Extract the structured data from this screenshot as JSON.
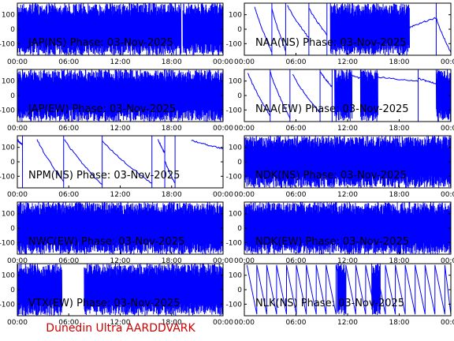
{
  "colors": {
    "trace": "#0000ff",
    "axis": "#000000",
    "footer": "#cc0000",
    "background": "#ffffff"
  },
  "footer_text": "Dunedin Ultra AARDDVARK",
  "chart_data": [
    {
      "type": "line",
      "title": "JAP(NS) Phase: 03-Nov-2025",
      "xlim": [
        0,
        24
      ],
      "ylim": [
        -180,
        180
      ],
      "xticks": [
        "00:00",
        "06:00",
        "12:00",
        "18:00",
        "00:00"
      ],
      "yticks": [
        100,
        0,
        -100
      ],
      "pattern": "dense",
      "gaps": [
        [
          19.1,
          19.3
        ]
      ],
      "ramps": []
    },
    {
      "type": "line",
      "title": "NAA(NS) Phase: 03-Nov-2025",
      "xlim": [
        0,
        24
      ],
      "ylim": [
        -180,
        180
      ],
      "xticks": [
        "00:00",
        "06:00",
        "12:00",
        "18:00",
        "00:00"
      ],
      "yticks": [
        100,
        0,
        -100
      ],
      "pattern": "ramps",
      "ramps": [
        [
          1.2,
          160,
          3.2,
          -160
        ],
        [
          3.2,
          150,
          4.8,
          -150
        ],
        [
          5.0,
          170,
          7.5,
          -60
        ],
        [
          7.5,
          150,
          9.6,
          -40
        ],
        [
          19.2,
          10,
          22.3,
          80
        ],
        [
          22.3,
          80,
          24.0,
          -160
        ]
      ],
      "dense": [
        [
          10.0,
          19.2
        ]
      ]
    },
    {
      "type": "line",
      "title": "JAP(EW) Phase: 03-Nov-2025",
      "xlim": [
        0,
        24
      ],
      "ylim": [
        -180,
        180
      ],
      "xticks": [
        "00:00",
        "06:00",
        "12:00",
        "18:00",
        "00:00"
      ],
      "yticks": [
        100,
        0,
        -100
      ],
      "pattern": "dense",
      "gaps": [],
      "ramps": []
    },
    {
      "type": "line",
      "title": "NAA(EW) Phase: 03-Nov-2025",
      "xlim": [
        0,
        24
      ],
      "ylim": [
        -180,
        180
      ],
      "xticks": [
        "00:00",
        "06:00",
        "12:00",
        "18:00",
        "00:00"
      ],
      "yticks": [
        100,
        0,
        -100
      ],
      "pattern": "ramps",
      "ramps": [
        [
          0.4,
          160,
          3.0,
          -140
        ],
        [
          3.0,
          170,
          5.3,
          -160
        ],
        [
          5.6,
          150,
          8.8,
          -120
        ],
        [
          8.8,
          170,
          10.2,
          60
        ],
        [
          12.2,
          150,
          15.4,
          80
        ],
        [
          15.4,
          130,
          20.2,
          100
        ],
        [
          20.2,
          120,
          22.5,
          80
        ]
      ],
      "dense": [
        [
          10.5,
          12.5
        ],
        [
          13.5,
          15.5
        ],
        [
          22.3,
          24.0
        ]
      ]
    },
    {
      "type": "line",
      "title": "NPM(NS) Phase: 03-Nov-2025",
      "xlim": [
        0,
        24
      ],
      "ylim": [
        -180,
        180
      ],
      "xticks": [
        "00:00",
        "06:00",
        "12:00",
        "18:00",
        "00:00"
      ],
      "yticks": [
        100,
        0,
        -100
      ],
      "pattern": "ramps",
      "ramps": [
        [
          0.0,
          150,
          0.6,
          120
        ],
        [
          2.3,
          160,
          5.4,
          -140
        ],
        [
          5.5,
          160,
          9.9,
          -160
        ],
        [
          9.9,
          150,
          15.7,
          -150
        ],
        [
          16.4,
          160,
          17.2,
          60
        ],
        [
          17.2,
          10,
          18.4,
          -150
        ],
        [
          20.3,
          150,
          24.0,
          90
        ]
      ],
      "dense": []
    },
    {
      "type": "line",
      "title": "NDK(NS) Phase: 03-Nov-2025",
      "xlim": [
        0,
        24
      ],
      "ylim": [
        -180,
        180
      ],
      "xticks": [
        "00:00",
        "06:00",
        "12:00",
        "18:00",
        "00:00"
      ],
      "yticks": [
        100,
        0,
        -100
      ],
      "pattern": "dense",
      "gaps": [],
      "ramps": []
    },
    {
      "type": "line",
      "title": "NWC(EW) Phase: 03-Nov-2025",
      "xlim": [
        0,
        24
      ],
      "ylim": [
        -180,
        180
      ],
      "xticks": [
        "00:00",
        "06:00",
        "12:00",
        "18:00",
        "00:00"
      ],
      "yticks": [
        100,
        0,
        -100
      ],
      "pattern": "dense",
      "gaps": [],
      "ramps": []
    },
    {
      "type": "line",
      "title": "NDK(EW) Phase: 03-Nov-2025",
      "xlim": [
        0,
        24
      ],
      "ylim": [
        -180,
        180
      ],
      "xticks": [
        "00:00",
        "06:00",
        "12:00",
        "18:00",
        "00:00"
      ],
      "yticks": [
        100,
        0,
        -100
      ],
      "pattern": "dense",
      "gaps": [],
      "ramps": []
    },
    {
      "type": "line",
      "title": "VTX(EW) Phase: 03-Nov-2025",
      "xlim": [
        0,
        24
      ],
      "ylim": [
        -180,
        180
      ],
      "xticks": [
        "00:00",
        "06:00",
        "12:00",
        "18:00",
        "00:00"
      ],
      "yticks": [
        100,
        0,
        -100
      ],
      "pattern": "dense",
      "gaps": [
        [
          5.2,
          7.8
        ]
      ],
      "ramps": []
    },
    {
      "type": "line",
      "title": "NLK(NS) Phase: 03-Nov-2025",
      "xlim": [
        0,
        24
      ],
      "ylim": [
        -180,
        180
      ],
      "xticks": [
        "00:00",
        "06:00",
        "12:00",
        "18:00",
        "00:00"
      ],
      "yticks": [
        100,
        0,
        -100
      ],
      "pattern": "sawtooth",
      "period": 1.15,
      "start": 0.3,
      "ramps": [],
      "dense": [
        [
          10.8,
          11.8
        ],
        [
          14.8,
          15.8
        ]
      ]
    }
  ]
}
